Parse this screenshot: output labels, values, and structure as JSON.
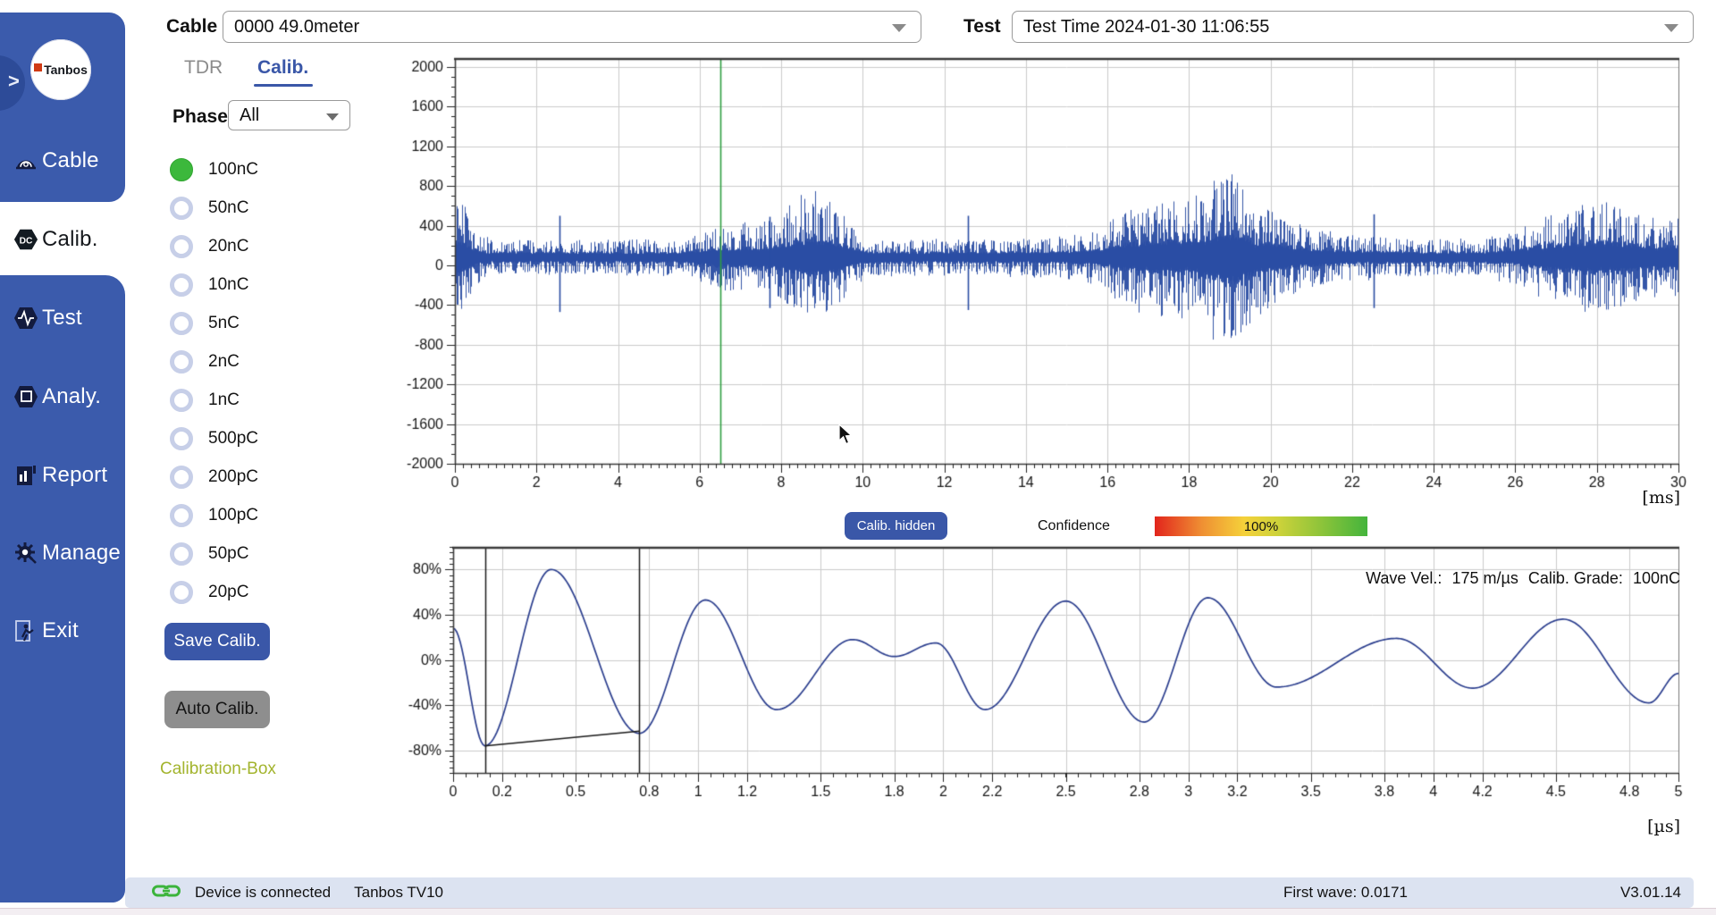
{
  "sidebar": {
    "logo_text": "Tanbos",
    "chevron": ">",
    "items": [
      {
        "label": "Cable",
        "selected": false
      },
      {
        "label": "Calib.",
        "selected": true
      },
      {
        "label": "Test",
        "selected": false
      },
      {
        "label": "Analy.",
        "selected": false
      },
      {
        "label": "Report",
        "selected": false
      },
      {
        "label": "Manage",
        "selected": false
      },
      {
        "label": "Exit",
        "selected": false
      }
    ]
  },
  "topbar": {
    "cable_label": "Cable",
    "cable_value": "0000  49.0meter",
    "test_label": "Test",
    "test_value": "Test Time 2024-01-30 11:06:55"
  },
  "tabs": [
    {
      "label": "TDR",
      "active": false
    },
    {
      "label": "Calib.",
      "active": true
    }
  ],
  "phase": {
    "label": "Phase",
    "value": "All"
  },
  "charges": {
    "options": [
      "100nC",
      "50nC",
      "20nC",
      "10nC",
      "5nC",
      "2nC",
      "1nC",
      "500pC",
      "200pC",
      "100pC",
      "50pC",
      "20pC"
    ],
    "selected": "100nC"
  },
  "buttons": {
    "save": "Save Calib.",
    "auto": "Auto Calib.",
    "calib_hidden": "Calib. hidden"
  },
  "calibration_box_label": "Calibration-Box",
  "confidence": {
    "label": "Confidence",
    "value": "100%"
  },
  "colors": {
    "sidebar_blue": "#3B5BAC",
    "accent_blue": "#3A57A8",
    "radio_green": "#3CB83C",
    "waveform_blue": "#2A4DA3",
    "pulse_navy": "#2B3E8E",
    "cursor_green": "#2F9E41",
    "calibbox_olive": "#A3B42E",
    "status_bg": "#DCE3F1"
  },
  "status_bar": {
    "device": "Device is connected",
    "device_name": "Tanbos TV10",
    "first_wave": "First wave: 0.0171",
    "version": "V3.01.14"
  },
  "chart_data": [
    {
      "id": "pd-waveform",
      "type": "line",
      "title": "Partial discharge raw waveform",
      "xlabel": "[ms]",
      "xlim": [
        0,
        30
      ],
      "xticks": [
        0,
        2,
        4,
        6,
        8,
        10,
        12,
        14,
        16,
        18,
        20,
        22,
        24,
        26,
        28,
        30
      ],
      "x_minor_step": 0.2,
      "ylim": [
        -2000,
        2090
      ],
      "yticks": [
        2000,
        1600,
        1200,
        800,
        400,
        0,
        -400,
        -800,
        -1200,
        -1600,
        -2000
      ],
      "y_minor_step": 100,
      "grid": true,
      "line_color": "#2A4DA3",
      "signal_center": 80,
      "noise_envelope": [
        [
          0,
          520
        ],
        [
          0.1,
          560
        ],
        [
          0.25,
          480
        ],
        [
          0.4,
          330
        ],
        [
          0.6,
          220
        ],
        [
          0.9,
          175
        ],
        [
          2.3,
          170
        ],
        [
          3.0,
          165
        ],
        [
          5.5,
          170
        ],
        [
          6.0,
          230
        ],
        [
          6.4,
          310
        ],
        [
          7.0,
          330
        ],
        [
          7.6,
          330
        ],
        [
          8.0,
          420
        ],
        [
          8.4,
          560
        ],
        [
          8.8,
          620
        ],
        [
          9.1,
          560
        ],
        [
          9.5,
          420
        ],
        [
          9.8,
          260
        ],
        [
          10.2,
          180
        ],
        [
          12.2,
          170
        ],
        [
          13.0,
          175
        ],
        [
          14.5,
          190
        ],
        [
          15.2,
          215
        ],
        [
          15.8,
          270
        ],
        [
          16.2,
          390
        ],
        [
          16.6,
          480
        ],
        [
          17.1,
          530
        ],
        [
          17.6,
          560
        ],
        [
          18.1,
          570
        ],
        [
          18.45,
          700
        ],
        [
          18.8,
          820
        ],
        [
          19.05,
          840
        ],
        [
          19.3,
          740
        ],
        [
          19.6,
          560
        ],
        [
          20.0,
          470
        ],
        [
          20.5,
          350
        ],
        [
          21.0,
          280
        ],
        [
          21.6,
          240
        ],
        [
          22.3,
          210
        ],
        [
          23.0,
          185
        ],
        [
          24.0,
          175
        ],
        [
          25.2,
          185
        ],
        [
          26.0,
          260
        ],
        [
          26.6,
          390
        ],
        [
          27.3,
          470
        ],
        [
          27.8,
          530
        ],
        [
          28.2,
          540
        ],
        [
          28.7,
          470
        ],
        [
          29.1,
          410
        ],
        [
          29.6,
          370
        ],
        [
          30,
          390
        ]
      ],
      "spikes": [
        [
          2.56,
          500,
          -470
        ],
        [
          7.72,
          490,
          -430
        ],
        [
          12.58,
          500,
          -450
        ],
        [
          22.52,
          515,
          -430
        ]
      ],
      "cursor_x": 6.5,
      "cursor_color": "#2F9E41"
    },
    {
      "id": "calib-pulse",
      "type": "line",
      "title": "Calibration pulse",
      "xlabel": "[µs]",
      "xlim": [
        0,
        5
      ],
      "xticks": [
        0,
        0.2,
        0.5,
        0.8,
        1,
        1.2,
        1.5,
        1.8,
        2,
        2.2,
        2.5,
        2.8,
        3,
        3.2,
        3.5,
        3.8,
        4,
        4.2,
        4.5,
        4.8,
        5
      ],
      "x_minor_step": 0.05,
      "ylim": [
        -100,
        100
      ],
      "yticks": [
        80,
        40,
        0,
        -40,
        -80
      ],
      "ytick_suffix": "%",
      "y_minor_step": 5,
      "grid": true,
      "line_color": "#2B3E8E",
      "points": [
        [
          0,
          28
        ],
        [
          0.13,
          -76
        ],
        [
          0.4,
          80
        ],
        [
          0.76,
          -65
        ],
        [
          1.03,
          53
        ],
        [
          1.32,
          -44
        ],
        [
          1.63,
          18
        ],
        [
          1.8,
          3
        ],
        [
          1.97,
          15
        ],
        [
          2.17,
          -44
        ],
        [
          2.5,
          52
        ],
        [
          2.82,
          -55
        ],
        [
          3.08,
          55
        ],
        [
          3.36,
          -24
        ],
        [
          3.85,
          19
        ],
        [
          4.16,
          -25
        ],
        [
          4.53,
          36
        ],
        [
          4.88,
          -38
        ],
        [
          5.0,
          -12
        ]
      ],
      "marker_vlines": [
        0.13,
        0.76
      ],
      "marker_segment": [
        [
          0.13,
          -76
        ],
        [
          0.76,
          -63
        ]
      ],
      "annotation": {
        "wave_vel_label": "Wave Vel.:",
        "wave_vel_value": "175 m/µs",
        "grade_label": "Calib. Grade:",
        "grade_value": "100nC"
      }
    }
  ]
}
